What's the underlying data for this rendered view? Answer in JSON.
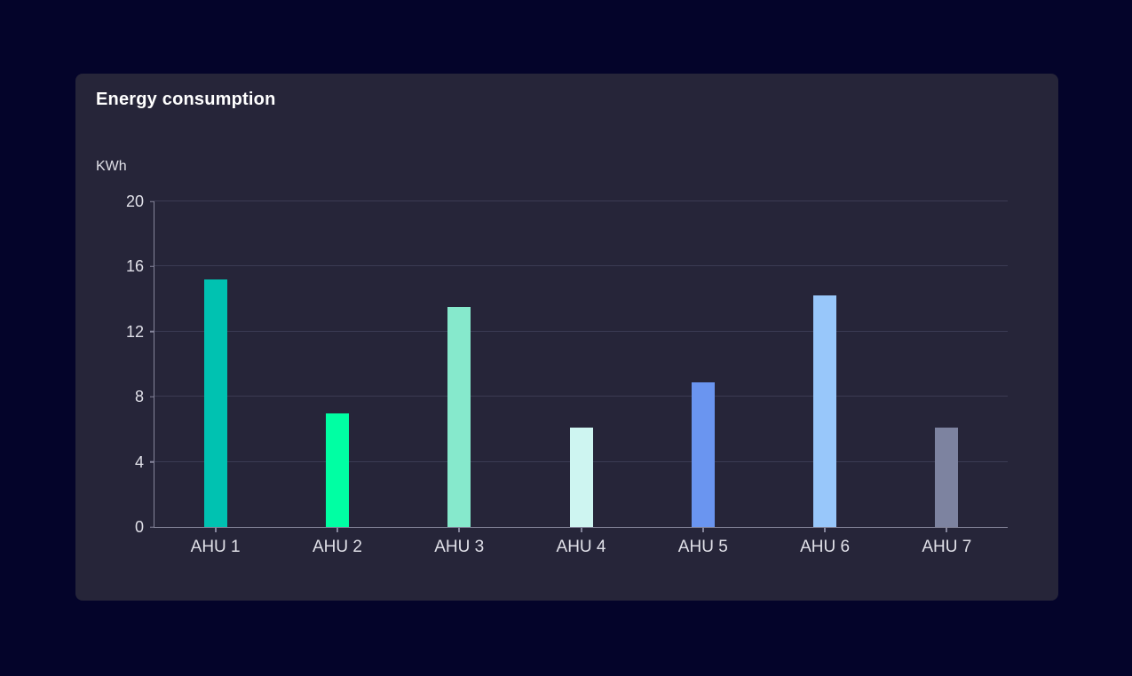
{
  "card": {
    "title": "Energy consumption"
  },
  "chart_data": {
    "type": "bar",
    "title": "Energy consumption",
    "xlabel": "",
    "ylabel": "KWh",
    "categories": [
      "AHU 1",
      "AHU 2",
      "AHU 3",
      "AHU 4",
      "AHU 5",
      "AHU 6",
      "AHU 7"
    ],
    "values": [
      15.2,
      7,
      13.5,
      6.1,
      8.9,
      14.2,
      6.1
    ],
    "bar_colors": [
      "#00C2B1",
      "#00FFA3",
      "#86E9CC",
      "#CEF5F1",
      "#6A95F0",
      "#98C7FA",
      "#7D83A0"
    ],
    "ylim": [
      0,
      20
    ],
    "yticks": [
      0,
      4,
      8,
      12,
      16,
      20
    ],
    "grid": true,
    "legend": false
  },
  "colors": {
    "page_bg": "#04042A",
    "card_bg": "#262539",
    "gridline": "#3B3B53",
    "axis": "#85859B",
    "tick_label": "#E0E0E8",
    "title_text": "#FFFFFF"
  }
}
